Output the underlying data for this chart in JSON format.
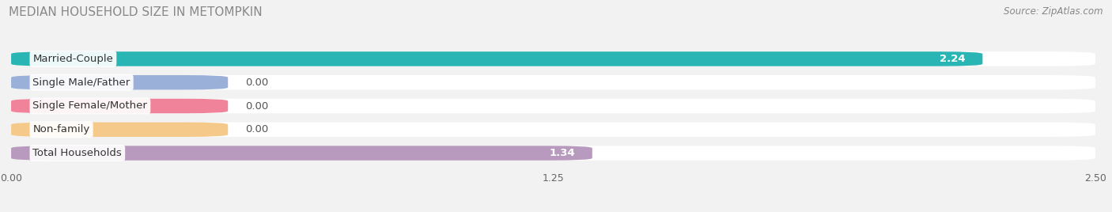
{
  "title": "MEDIAN HOUSEHOLD SIZE IN METOMPKIN",
  "source": "Source: ZipAtlas.com",
  "categories": [
    "Married-Couple",
    "Single Male/Father",
    "Single Female/Mother",
    "Non-family",
    "Total Households"
  ],
  "values": [
    2.24,
    0.0,
    0.0,
    0.0,
    1.34
  ],
  "bar_colors": [
    "#2ab5b5",
    "#9ab0d8",
    "#f0829a",
    "#f5c98a",
    "#b89abe"
  ],
  "bg_color": "#f2f2f2",
  "bar_bg_color": "#e8e8ec",
  "xlim": [
    0,
    2.5
  ],
  "xticks": [
    0.0,
    1.25,
    2.5
  ],
  "xtick_labels": [
    "0.00",
    "1.25",
    "2.50"
  ],
  "title_fontsize": 11,
  "source_fontsize": 8.5,
  "label_fontsize": 9.5,
  "value_fontsize": 9.5,
  "zero_bar_width": 0.5
}
